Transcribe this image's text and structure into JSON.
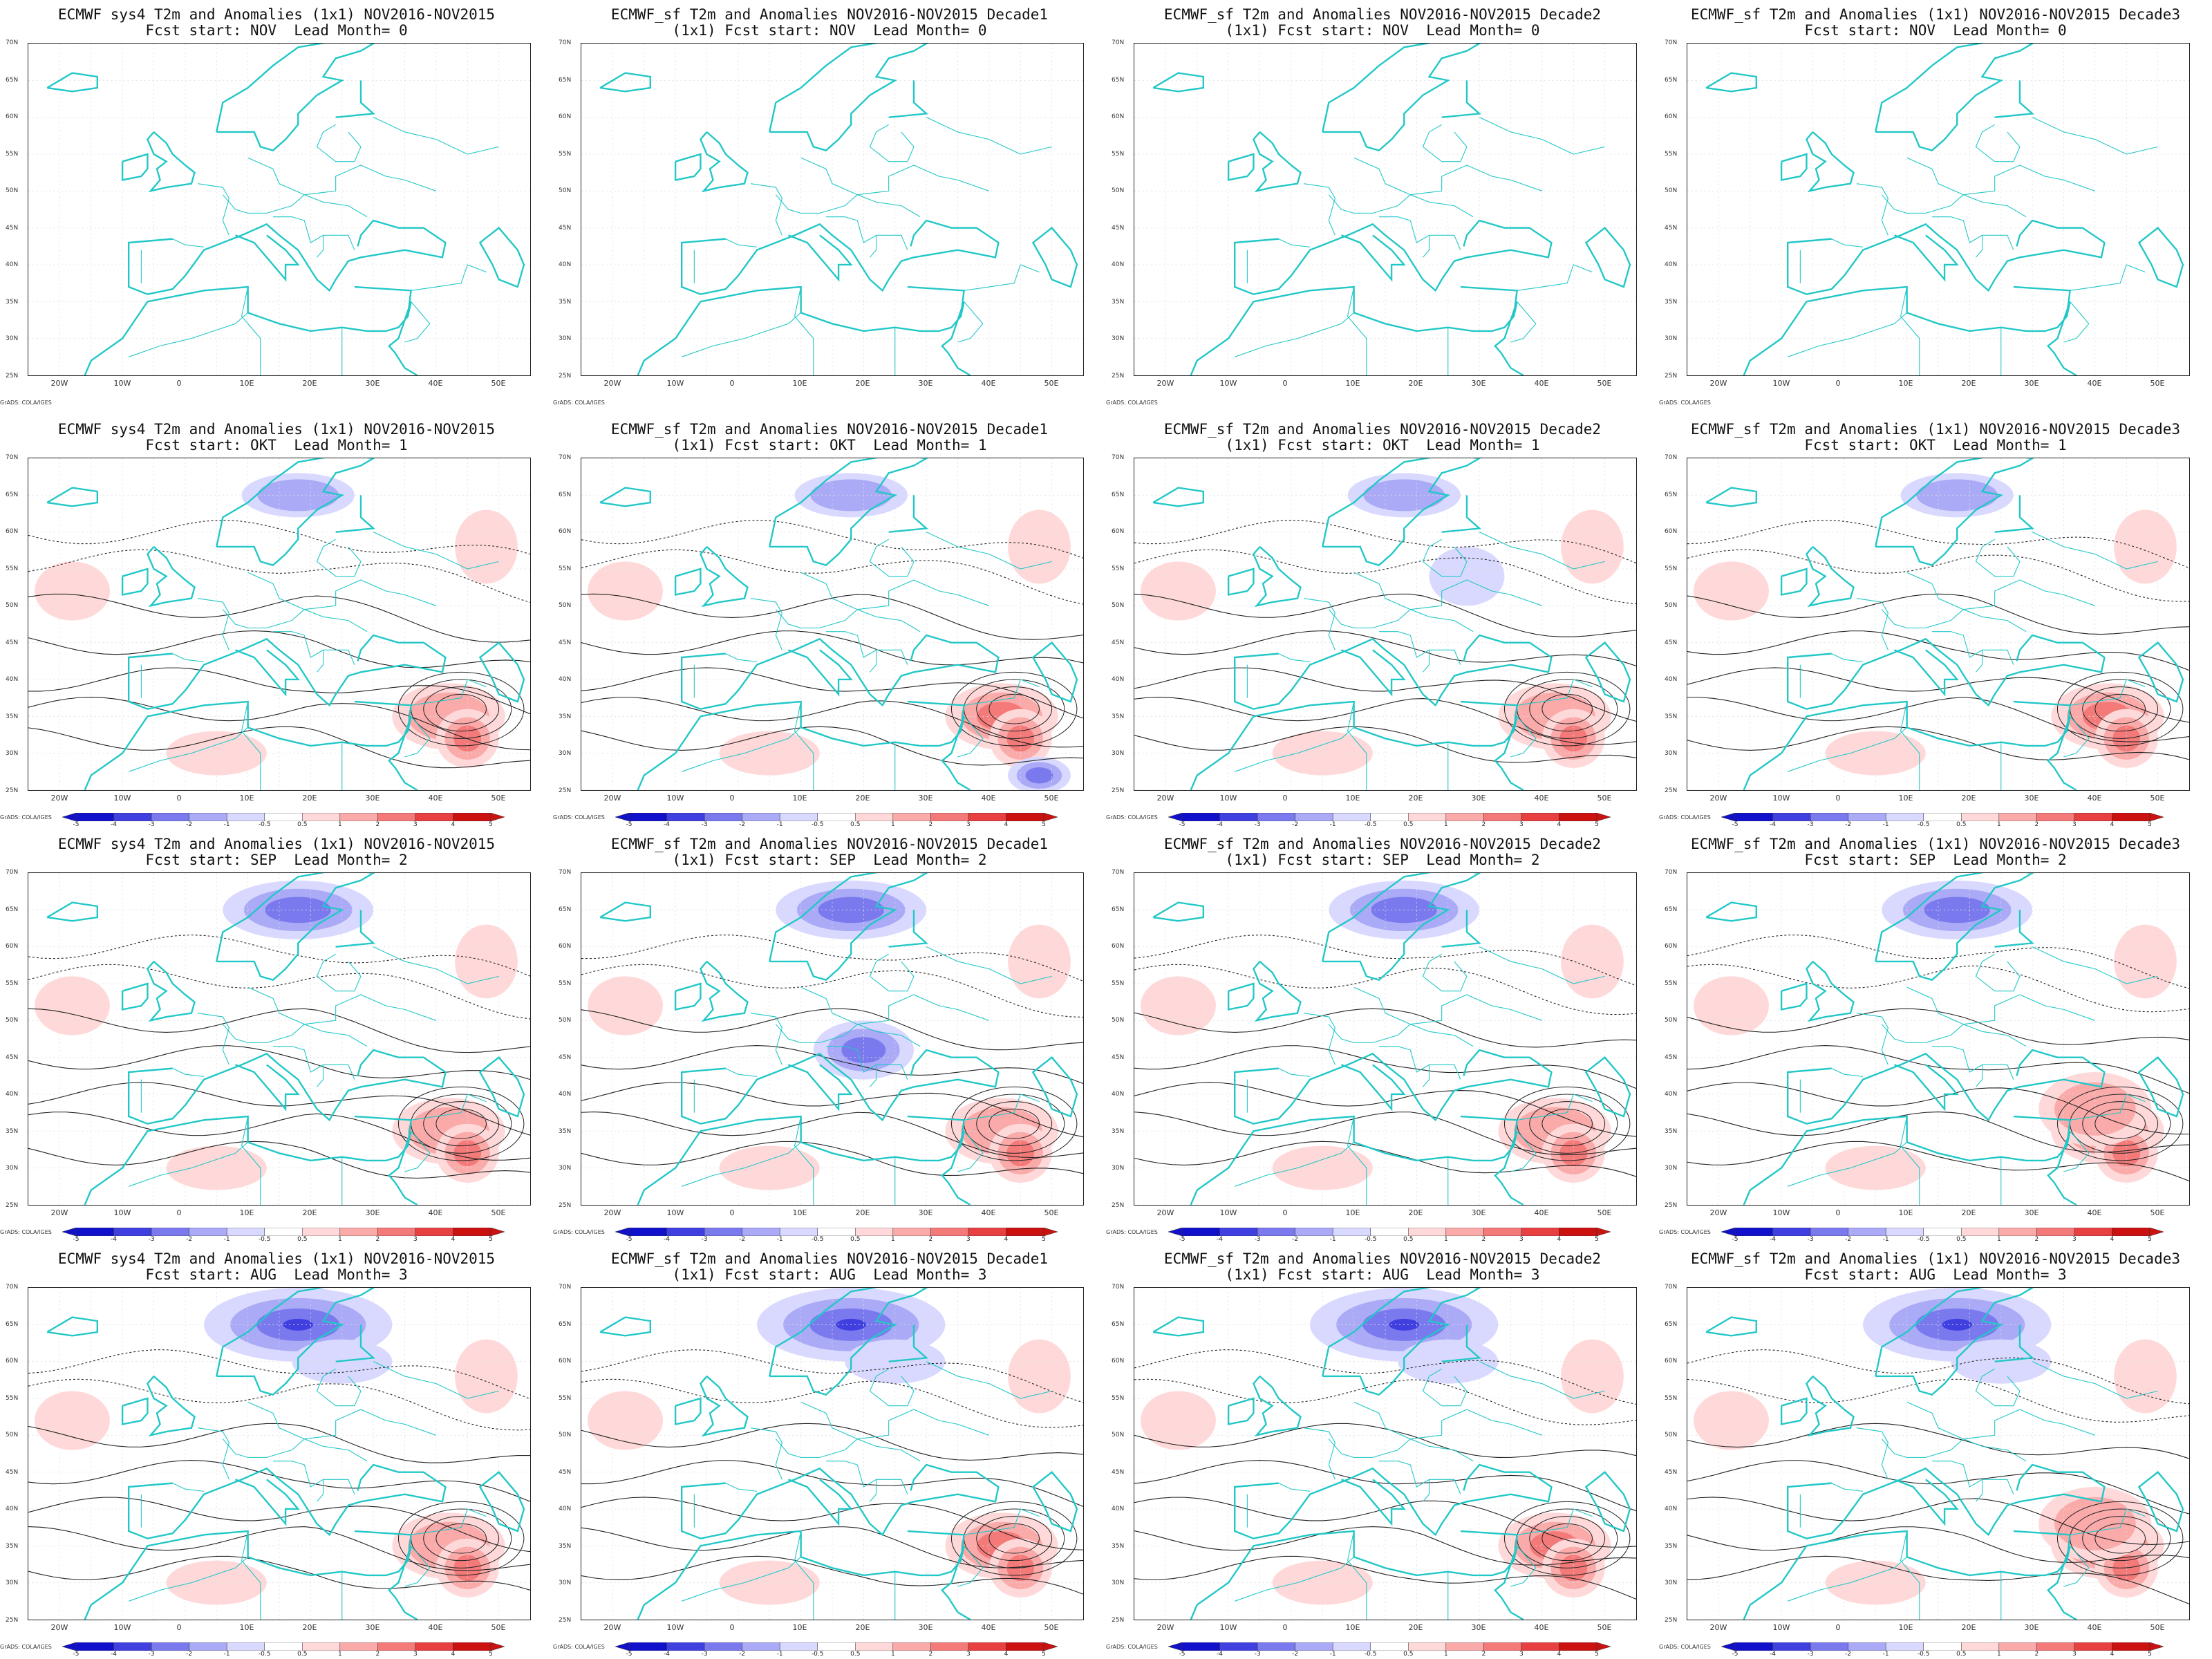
{
  "figure": {
    "credit": "GrADS: COLA/IGES",
    "lat_labels": [
      "70N",
      "65N",
      "60N",
      "55N",
      "50N",
      "45N",
      "40N",
      "35N",
      "30N",
      "25N"
    ],
    "lon_labels": [
      "20W",
      "10W",
      "0",
      "10E",
      "20E",
      "30E",
      "40E",
      "50E"
    ],
    "colorbar_labels": [
      "-5",
      "-4",
      "-3",
      "-2",
      "-1",
      "-0.5",
      "0.5",
      "1",
      "2",
      "3",
      "4",
      "5"
    ],
    "colors": {
      "coastline": "#22c7c7",
      "contour": "#222222",
      "warm": [
        "#ffd9d9",
        "#fbaaaa",
        "#f47a7a",
        "#e84040",
        "#cc1111"
      ],
      "cold": [
        "#d9d9ff",
        "#aaaaf7",
        "#7a7aee",
        "#4040e0",
        "#1111cc"
      ]
    },
    "rows": [
      {
        "lead_month": 0,
        "fcst_start": "NOV",
        "panels": [
          {
            "title1": "ECMWF sys4 T2m and Anomalies (1x1) NOV2016-NOV2015",
            "title2": "Fcst start: NOV  Lead Month= 0"
          },
          {
            "title1": "ECMWF_sf T2m and Anomalies NOV2016-NOV2015 Decade1",
            "title2": "(1x1) Fcst start: NOV  Lead Month= 0"
          },
          {
            "title1": "ECMWF_sf T2m and Anomalies NOV2016-NOV2015 Decade2",
            "title2": "(1x1) Fcst start: NOV  Lead Month= 0"
          },
          {
            "title1": "ECMWF_sf T2m and Anomalies (1x1) NOV2016-NOV2015 Decade3",
            "title2": "Fcst start: NOV  Lead Month= 0"
          }
        ]
      },
      {
        "lead_month": 1,
        "fcst_start": "OKT",
        "panels": [
          {
            "title1": "ECMWF sys4 T2m and Anomalies (1x1) NOV2016-NOV2015",
            "title2": "Fcst start: OKT  Lead Month= 1"
          },
          {
            "title1": "ECMWF_sf T2m and Anomalies NOV2016-NOV2015 Decade1",
            "title2": "(1x1) Fcst start: OKT  Lead Month= 1"
          },
          {
            "title1": "ECMWF_sf T2m and Anomalies NOV2016-NOV2015 Decade2",
            "title2": "(1x1) Fcst start: OKT  Lead Month= 1"
          },
          {
            "title1": "ECMWF_sf T2m and Anomalies (1x1) NOV2016-NOV2015 Decade3",
            "title2": "Fcst start: OKT  Lead Month= 1"
          }
        ]
      },
      {
        "lead_month": 2,
        "fcst_start": "SEP",
        "panels": [
          {
            "title1": "ECMWF sys4 T2m and Anomalies (1x1) NOV2016-NOV2015",
            "title2": "Fcst start: SEP  Lead Month= 2"
          },
          {
            "title1": "ECMWF_sf T2m and Anomalies NOV2016-NOV2015 Decade1",
            "title2": "(1x1) Fcst start: SEP  Lead Month= 2"
          },
          {
            "title1": "ECMWF_sf T2m and Anomalies NOV2016-NOV2015 Decade2",
            "title2": "(1x1) Fcst start: SEP  Lead Month= 2"
          },
          {
            "title1": "ECMWF_sf T2m and Anomalies (1x1) NOV2016-NOV2015 Decade3",
            "title2": "Fcst start: SEP  Lead Month= 2"
          }
        ]
      },
      {
        "lead_month": 3,
        "fcst_start": "AUG",
        "panels": [
          {
            "title1": "ECMWF sys4 T2m and Anomalies (1x1) NOV2016-NOV2015",
            "title2": "Fcst start: AUG  Lead Month= 3"
          },
          {
            "title1": "ECMWF_sf T2m and Anomalies NOV2016-NOV2015 Decade1",
            "title2": "(1x1) Fcst start: AUG  Lead Month= 3"
          },
          {
            "title1": "ECMWF_sf T2m and Anomalies NOV2016-NOV2015 Decade2",
            "title2": "(1x1) Fcst start: AUG  Lead Month= 3"
          },
          {
            "title1": "ECMWF_sf T2m and Anomalies (1x1) NOV2016-NOV2015 Decade3",
            "title2": "Fcst start: AUG  Lead Month= 3"
          }
        ]
      }
    ]
  }
}
